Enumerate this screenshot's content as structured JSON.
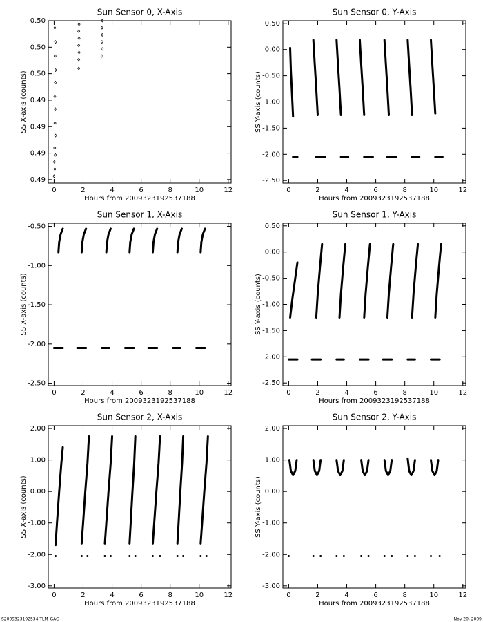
{
  "chart_data": [
    {
      "type": "scatter",
      "title": "Sun Sensor 0, X-Axis",
      "xlabel": "Hours from 2009323192537188",
      "ylabel": "SS X-axis (counts)",
      "color": "#000000",
      "xlim": [
        -0.4,
        12.2
      ],
      "xticks": [
        0,
        2,
        4,
        6,
        8,
        10,
        12
      ],
      "ylim": [
        0.4898,
        0.499
      ],
      "yticks": [
        {
          "value": 0.49,
          "label": "0.49"
        },
        {
          "value": 0.4915,
          "label": "0.49"
        },
        {
          "value": 0.493,
          "label": "0.49"
        },
        {
          "value": 0.4945,
          "label": "0.49"
        },
        {
          "value": 0.496,
          "label": "0.50"
        },
        {
          "value": 0.4975,
          "label": "0.50"
        },
        {
          "value": 0.499,
          "label": "0.50"
        }
      ],
      "x": [
        0.0,
        0.05,
        0.02,
        0.08,
        0.04,
        0.1,
        0.06,
        0.08,
        0.05,
        0.09,
        0.1,
        0.07,
        0.1,
        0.05,
        1.7,
        1.7,
        1.72,
        1.7,
        1.72,
        1.7,
        1.72,
        3.3,
        3.32,
        3.3,
        3.32,
        3.3,
        3.32
      ],
      "y": [
        0.4902,
        0.4906,
        0.491,
        0.4914,
        0.4918,
        0.4925,
        0.4932,
        0.494,
        0.4947,
        0.4955,
        0.4962,
        0.497,
        0.4978,
        0.4986,
        0.4963,
        0.4968,
        0.4972,
        0.4976,
        0.498,
        0.4984,
        0.4988,
        0.497,
        0.4974,
        0.4978,
        0.4982,
        0.4986,
        0.499
      ]
    },
    {
      "type": "line",
      "title": "Sun Sensor 0, Y-Axis",
      "xlabel": "Hours from 2009323192537188",
      "ylabel": "SS Y-axis (counts)",
      "color": "#000000",
      "xlim": [
        -0.4,
        12.2
      ],
      "xticks": [
        0,
        2,
        4,
        6,
        8,
        10,
        12
      ],
      "ylim": [
        -2.55,
        0.55
      ],
      "yticks": [
        {
          "value": -2.5,
          "label": "-2.50"
        },
        {
          "value": -2,
          "label": "-2.00"
        },
        {
          "value": -1.5,
          "label": "-1.50"
        },
        {
          "value": -1,
          "label": "-1.00"
        },
        {
          "value": -0.5,
          "label": "-0.50"
        },
        {
          "value": 0,
          "label": "0.00"
        },
        {
          "value": 0.5,
          "label": "0.50"
        }
      ],
      "x": [
        0.1,
        0.15,
        0.22,
        0.3,
        null,
        1.7,
        1.8,
        1.9,
        2.0,
        null,
        3.3,
        3.4,
        3.5,
        3.6,
        null,
        4.9,
        5.0,
        5.1,
        5.2,
        null,
        6.6,
        6.7,
        6.8,
        6.9,
        null,
        8.2,
        8.3,
        8.4,
        8.5,
        null,
        9.8,
        9.9,
        10.0,
        10.1,
        null,
        0.3,
        0.6,
        null,
        1.9,
        2.5,
        null,
        3.6,
        4.1,
        null,
        5.2,
        5.8,
        null,
        6.8,
        7.4,
        null,
        8.5,
        9.0,
        null,
        10.1,
        10.6
      ],
      "y": [
        0.03,
        -0.4,
        -0.8,
        -1.28,
        null,
        0.18,
        -0.3,
        -0.75,
        -1.25,
        null,
        0.18,
        -0.3,
        -0.75,
        -1.25,
        null,
        0.18,
        -0.3,
        -0.75,
        -1.25,
        null,
        0.18,
        -0.3,
        -0.75,
        -1.25,
        null,
        0.18,
        -0.3,
        -0.75,
        -1.25,
        null,
        0.18,
        -0.3,
        -0.75,
        -1.22,
        null,
        -2.05,
        -2.05,
        null,
        -2.05,
        -2.05,
        null,
        -2.05,
        -2.05,
        null,
        -2.05,
        -2.05,
        null,
        -2.05,
        -2.05,
        null,
        -2.05,
        -2.05,
        null,
        -2.05,
        -2.05
      ]
    },
    {
      "type": "line",
      "title": "Sun Sensor 1, X-Axis",
      "xlabel": "Hours from 2009323192537188",
      "ylabel": "SS X-axis (counts)",
      "color": "#000000",
      "xlim": [
        -0.4,
        12.2
      ],
      "xticks": [
        0,
        2,
        4,
        6,
        8,
        10,
        12
      ],
      "ylim": [
        -2.53,
        -0.46
      ],
      "yticks": [
        {
          "value": -2.5,
          "label": "-2.50"
        },
        {
          "value": -2,
          "label": "-2.00"
        },
        {
          "value": -1.5,
          "label": "-1.50"
        },
        {
          "value": -1,
          "label": "-1.00"
        },
        {
          "value": -0.5,
          "label": "-0.50"
        }
      ],
      "x": [
        0.3,
        0.35,
        0.45,
        0.6,
        null,
        1.9,
        1.95,
        2.05,
        2.2,
        null,
        3.6,
        3.65,
        3.75,
        3.9,
        null,
        5.2,
        5.25,
        5.35,
        5.5,
        null,
        6.8,
        6.85,
        6.95,
        7.1,
        null,
        8.5,
        8.55,
        8.65,
        8.8,
        null,
        10.1,
        10.15,
        10.25,
        10.4,
        null,
        0.0,
        0.6,
        null,
        1.6,
        2.2,
        null,
        3.3,
        3.8,
        null,
        4.9,
        5.5,
        null,
        6.5,
        7.1,
        null,
        8.2,
        8.7,
        null,
        9.8,
        10.4
      ],
      "y": [
        -0.83,
        -0.7,
        -0.6,
        -0.53,
        null,
        -0.83,
        -0.7,
        -0.6,
        -0.53,
        null,
        -0.83,
        -0.7,
        -0.6,
        -0.53,
        null,
        -0.83,
        -0.7,
        -0.6,
        -0.53,
        null,
        -0.83,
        -0.7,
        -0.6,
        -0.53,
        null,
        -0.83,
        -0.7,
        -0.6,
        -0.53,
        null,
        -0.83,
        -0.7,
        -0.6,
        -0.53,
        null,
        -2.05,
        -2.05,
        null,
        -2.05,
        -2.05,
        null,
        -2.05,
        -2.05,
        null,
        -2.05,
        -2.05,
        null,
        -2.05,
        -2.05,
        null,
        -2.05,
        -2.05,
        null,
        -2.05,
        -2.05
      ]
    },
    {
      "type": "line",
      "title": "Sun Sensor 1, Y-Axis",
      "xlabel": "Hours from 2009323192537188",
      "ylabel": "SS Y-axis (counts)",
      "color": "#000000",
      "xlim": [
        -0.4,
        12.2
      ],
      "xticks": [
        0,
        2,
        4,
        6,
        8,
        10,
        12
      ],
      "ylim": [
        -2.55,
        0.55
      ],
      "yticks": [
        {
          "value": -2.5,
          "label": "-2.50"
        },
        {
          "value": -2,
          "label": "-2.00"
        },
        {
          "value": -1.5,
          "label": "-1.50"
        },
        {
          "value": -1,
          "label": "-1.00"
        },
        {
          "value": -0.5,
          "label": "-0.50"
        },
        {
          "value": 0,
          "label": "0.00"
        },
        {
          "value": 0.5,
          "label": "0.50"
        }
      ],
      "x": [
        0.1,
        0.25,
        0.45,
        0.6,
        null,
        1.9,
        2.0,
        2.15,
        2.3,
        null,
        3.5,
        3.6,
        3.75,
        3.9,
        null,
        5.2,
        5.3,
        5.45,
        5.6,
        null,
        6.8,
        6.9,
        7.05,
        7.2,
        null,
        8.5,
        8.6,
        8.75,
        8.9,
        null,
        10.1,
        10.2,
        10.35,
        10.5,
        null,
        0.0,
        0.6,
        null,
        1.6,
        2.2,
        null,
        3.3,
        3.8,
        null,
        4.9,
        5.5,
        null,
        6.5,
        7.1,
        null,
        8.2,
        8.7,
        null,
        9.8,
        10.4
      ],
      "y": [
        -1.25,
        -0.9,
        -0.5,
        -0.2,
        null,
        -1.25,
        -0.8,
        -0.3,
        0.15,
        null,
        -1.25,
        -0.8,
        -0.3,
        0.15,
        null,
        -1.25,
        -0.8,
        -0.3,
        0.15,
        null,
        -1.25,
        -0.8,
        -0.3,
        0.15,
        null,
        -1.25,
        -0.8,
        -0.3,
        0.15,
        null,
        -1.25,
        -0.8,
        -0.3,
        0.15,
        null,
        -2.05,
        -2.05,
        null,
        -2.05,
        -2.05,
        null,
        -2.05,
        -2.05,
        null,
        -2.05,
        -2.05,
        null,
        -2.05,
        -2.05,
        null,
        -2.05,
        -2.05,
        null,
        -2.05,
        -2.05
      ]
    },
    {
      "type": "line",
      "title": "Sun Sensor 2, X-Axis",
      "xlabel": "Hours from 2009323192537188",
      "ylabel": "SS X-axis (counts)",
      "color": "#000000",
      "xlim": [
        -0.4,
        12.2
      ],
      "xticks": [
        0,
        2,
        4,
        6,
        8,
        10,
        12
      ],
      "ylim": [
        -3.07,
        2.09
      ],
      "yticks": [
        {
          "value": -3,
          "label": "-3.00"
        },
        {
          "value": -2,
          "label": "-2.00"
        },
        {
          "value": -1,
          "label": "-1.00"
        },
        {
          "value": 0,
          "label": "0.00"
        },
        {
          "value": 1,
          "label": "1.00"
        },
        {
          "value": 2,
          "label": "2.00"
        }
      ],
      "x": [
        0.1,
        0.2,
        0.35,
        0.5,
        0.6,
        null,
        1.9,
        2.0,
        2.15,
        2.3,
        2.4,
        null,
        3.5,
        3.6,
        3.75,
        3.9,
        4.0,
        null,
        5.2,
        5.28,
        5.4,
        5.52,
        5.6,
        null,
        6.8,
        6.9,
        7.05,
        7.2,
        7.3,
        null,
        8.5,
        8.58,
        8.7,
        8.82,
        8.9,
        null,
        10.1,
        10.2,
        10.35,
        10.5,
        10.6,
        null,
        0.1,
        null,
        1.9,
        null,
        2.3,
        null,
        3.5,
        null,
        3.9,
        null,
        5.2,
        null,
        5.6,
        null,
        6.8,
        null,
        7.3,
        null,
        8.5,
        null,
        8.9,
        null,
        10.1,
        null,
        10.5
      ],
      "y": [
        -1.7,
        -1.0,
        0.0,
        0.9,
        1.4,
        null,
        -1.65,
        -1.0,
        0.0,
        0.9,
        1.75,
        null,
        -1.65,
        -1.0,
        0.0,
        0.9,
        1.75,
        null,
        -1.65,
        -1.0,
        0.0,
        0.9,
        1.75,
        null,
        -1.65,
        -1.0,
        0.0,
        0.9,
        1.75,
        null,
        -1.65,
        -1.0,
        0.0,
        0.9,
        1.75,
        null,
        -1.65,
        -1.0,
        0.0,
        0.9,
        1.75,
        null,
        -2.05,
        null,
        -2.05,
        null,
        -2.05,
        null,
        -2.05,
        null,
        -2.05,
        null,
        -2.05,
        null,
        -2.05,
        null,
        -2.05,
        null,
        -2.05,
        null,
        -2.05,
        null,
        -2.05,
        null,
        -2.05,
        null,
        -2.05
      ]
    },
    {
      "type": "line",
      "title": "Sun Sensor 2, Y-Axis",
      "xlabel": "Hours from 2009323192537188",
      "ylabel": "SS Y-axis (counts)",
      "color": "#000000",
      "xlim": [
        -0.4,
        12.2
      ],
      "xticks": [
        0,
        2,
        4,
        6,
        8,
        10,
        12
      ],
      "ylim": [
        -3.07,
        2.09
      ],
      "yticks": [
        {
          "value": -3,
          "label": "-3.00"
        },
        {
          "value": -2,
          "label": "-2.00"
        },
        {
          "value": -1,
          "label": "-1.00"
        },
        {
          "value": 0,
          "label": "0.00"
        },
        {
          "value": 1,
          "label": "1.00"
        },
        {
          "value": 2,
          "label": "2.00"
        }
      ],
      "x": [
        0.05,
        0.15,
        0.3,
        0.45,
        0.55,
        null,
        1.7,
        1.8,
        1.95,
        2.1,
        2.2,
        null,
        3.3,
        3.4,
        3.55,
        3.7,
        3.8,
        null,
        5.0,
        5.1,
        5.25,
        5.4,
        5.5,
        null,
        6.6,
        6.7,
        6.85,
        7.0,
        7.1,
        null,
        8.2,
        8.3,
        8.45,
        8.6,
        8.7,
        null,
        9.8,
        9.9,
        10.05,
        10.2,
        10.3,
        null,
        0.0,
        null,
        1.7,
        null,
        2.2,
        null,
        3.3,
        null,
        3.8,
        null,
        5.0,
        null,
        5.5,
        null,
        6.6,
        null,
        7.1,
        null,
        8.2,
        null,
        8.7,
        null,
        9.8,
        null,
        10.4
      ],
      "y": [
        1.0,
        0.65,
        0.52,
        0.65,
        1.0,
        null,
        1.0,
        0.65,
        0.52,
        0.65,
        1.0,
        null,
        1.0,
        0.65,
        0.52,
        0.65,
        1.0,
        null,
        1.0,
        0.65,
        0.52,
        0.65,
        1.0,
        null,
        1.0,
        0.65,
        0.52,
        0.65,
        1.0,
        null,
        1.05,
        0.65,
        0.52,
        0.65,
        1.0,
        null,
        1.0,
        0.65,
        0.52,
        0.65,
        1.0,
        null,
        -2.05,
        null,
        -2.05,
        null,
        -2.05,
        null,
        -2.05,
        null,
        -2.05,
        null,
        -2.05,
        null,
        -2.05,
        null,
        -2.05,
        null,
        -2.05,
        null,
        -2.05,
        null,
        -2.05,
        null,
        -2.05,
        null,
        -2.05
      ]
    }
  ],
  "footer": {
    "file": "S2009323192534.TLM_GAC",
    "date": "Nov 20, 2009"
  }
}
